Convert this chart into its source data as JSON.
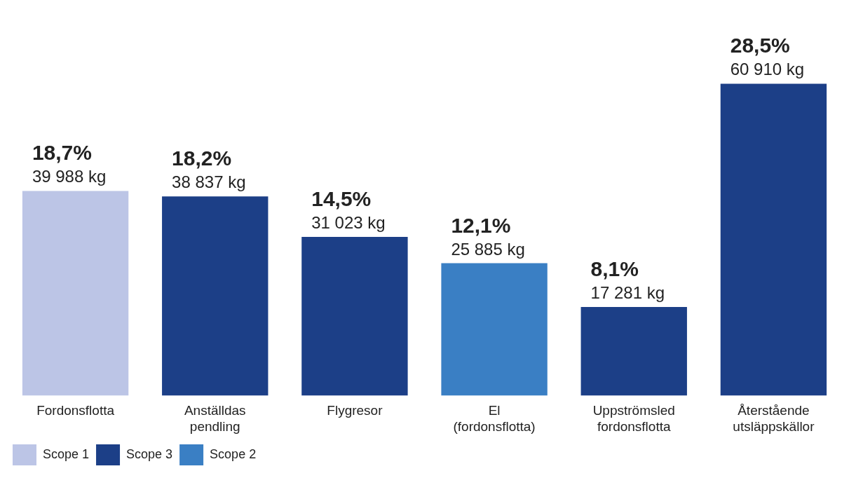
{
  "chart_data": {
    "type": "bar",
    "categories": [
      "Fordonsflotta",
      "Anställdas pendling",
      "Flygresor",
      "El (fordonsflotta)",
      "Uppströmsled fordonsflotta",
      "Återstående utsläppskällor"
    ],
    "series": [
      {
        "name": "Scope 1",
        "color": "#bcc5e6",
        "values": [
          18.7,
          null,
          null,
          null,
          null,
          null
        ],
        "value_labels": [
          "18,7%",
          null,
          null,
          null,
          null,
          null
        ]
      },
      {
        "name": "Scope 3",
        "color": "#1c3f87",
        "values": [
          null,
          18.2,
          14.5,
          null,
          8.1,
          null
        ],
        "value_labels": [
          null,
          "18,2%",
          "14,5%",
          null,
          "8,1%",
          null
        ]
      },
      {
        "name": "Scope 2",
        "color": "#3a7fc4",
        "values": [
          null,
          null,
          null,
          12.1,
          null,
          null
        ],
        "value_labels": [
          null,
          null,
          null,
          "12,1%",
          null,
          null
        ]
      },
      {
        "color": "#1c3f87",
        "values": [
          null,
          null,
          null,
          null,
          null,
          28.5
        ],
        "value_labels": [
          null,
          null,
          null,
          null,
          null,
          "28,5%"
        ]
      }
    ],
    "annotations": [
      {
        "text": "39 988 kg",
        "x": "Fordonsflotta",
        "y": 18.7
      },
      {
        "text": "38 837 kg",
        "x": "Anställdas pendling",
        "y": 18.2
      },
      {
        "text": "31 023 kg",
        "x": "Flygresor",
        "y": 14.5
      },
      {
        "text": "25 885 kg",
        "x": "El (fordonsflotta)",
        "y": 12.1
      },
      {
        "text": "17 281 kg",
        "x": "Uppströmsled fordonsflotta",
        "y": 8.1
      },
      {
        "text": "60 910 kg",
        "x": "Återstående utsläppskällor",
        "y": 28.5
      }
    ],
    "legend": "bottom left",
    "grid": false
  }
}
